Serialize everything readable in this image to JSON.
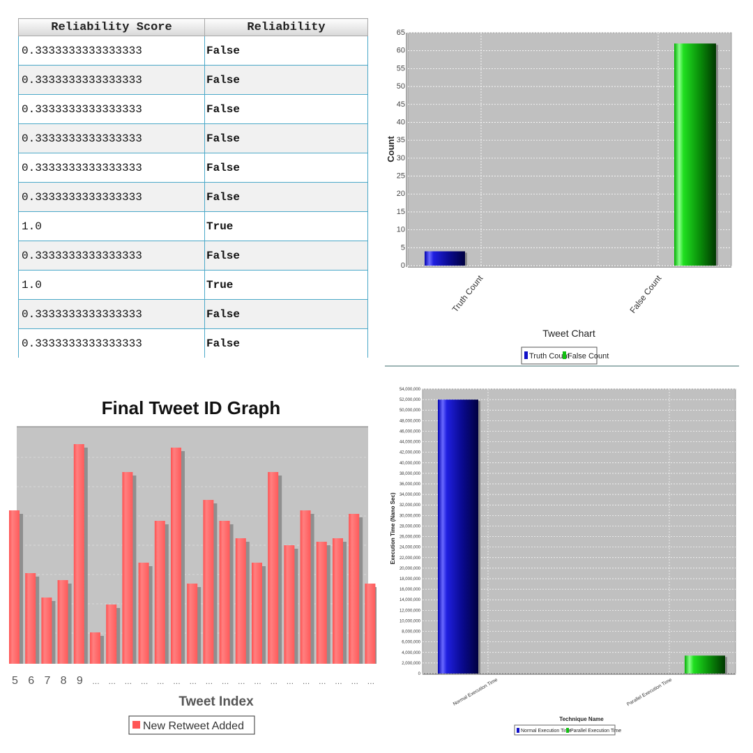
{
  "table": {
    "headers": [
      "Reliability Score",
      "Reliability"
    ],
    "rows": [
      [
        "0.3333333333333333",
        "False"
      ],
      [
        "0.3333333333333333",
        "False"
      ],
      [
        "0.3333333333333333",
        "False"
      ],
      [
        "0.3333333333333333",
        "False"
      ],
      [
        "0.3333333333333333",
        "False"
      ],
      [
        "0.3333333333333333",
        "False"
      ],
      [
        "1.0",
        "True"
      ],
      [
        "0.3333333333333333",
        "False"
      ],
      [
        "1.0",
        "True"
      ],
      [
        "0.3333333333333333",
        "False"
      ],
      [
        "0.3333333333333333",
        "False"
      ]
    ]
  },
  "chart_data": [
    {
      "type": "bar",
      "title": "",
      "xlabel": "Tweet Chart",
      "ylabel": "Count",
      "categories": [
        "Truth Count",
        "False Count"
      ],
      "series": [
        {
          "name": "Truth Count",
          "values": [
            4,
            null
          ]
        },
        {
          "name": "False Count",
          "values": [
            null,
            62
          ]
        }
      ],
      "ylim": [
        0,
        65
      ],
      "yticks": [
        "0",
        "5",
        "10",
        "15",
        "20",
        "25",
        "30",
        "35",
        "40",
        "45",
        "50",
        "55",
        "60",
        "65"
      ],
      "grid": true,
      "legend": "bottom",
      "colors": {
        "Truth Count": "#1010c8",
        "False Count": "#10d010"
      }
    },
    {
      "type": "bar",
      "title": "Final Tweet ID Graph",
      "xlabel": "Tweet Index",
      "ylabel": "",
      "categories": [
        "5",
        "6",
        "7",
        "8",
        "9",
        "…",
        "…",
        "…",
        "…",
        "…",
        "…",
        "…",
        "…",
        "…",
        "…",
        "…",
        "…",
        "…",
        "…",
        "…",
        "…",
        "…",
        "…"
      ],
      "series": [
        {
          "name": "New Retweet Added",
          "values": [
            44,
            26,
            19,
            24,
            63,
            9,
            17,
            55,
            29,
            41,
            62,
            23,
            47,
            41,
            36,
            29,
            55,
            34,
            44,
            35,
            36,
            43,
            23
          ]
        }
      ],
      "grid": true,
      "legend": "bottom",
      "colors": {
        "New Retweet Added": "#ff6666"
      }
    },
    {
      "type": "bar",
      "title": "",
      "xlabel": "Technique Name",
      "ylabel": "Execution Time (Nano Sec)",
      "categories": [
        "Normal Execution Time",
        "Parallel Execution Time"
      ],
      "series": [
        {
          "name": "Normal Execution Time",
          "values": [
            52000000,
            null
          ]
        },
        {
          "name": "Parallel Execution Time",
          "values": [
            null,
            3400000
          ]
        }
      ],
      "ylim": [
        0,
        54000000
      ],
      "yticks": [
        "0",
        "2,000,000",
        "4,000,000",
        "6,000,000",
        "8,000,000",
        "10,000,000",
        "12,000,000",
        "14,000,000",
        "16,000,000",
        "18,000,000",
        "20,000,000",
        "22,000,000",
        "24,000,000",
        "26,000,000",
        "28,000,000",
        "30,000,000",
        "32,000,000",
        "34,000,000",
        "36,000,000",
        "38,000,000",
        "40,000,000",
        "42,000,000",
        "44,000,000",
        "46,000,000",
        "48,000,000",
        "50,000,000",
        "52,000,000",
        "54,000,000"
      ],
      "grid": true,
      "legend": "bottom",
      "colors": {
        "Normal Execution Time": "#1010c8",
        "Parallel Execution Time": "#10d010"
      }
    }
  ]
}
